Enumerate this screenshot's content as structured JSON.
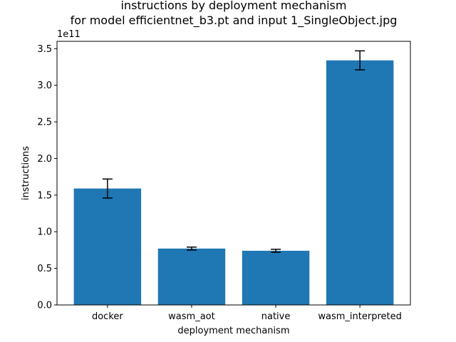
{
  "chart_data": {
    "type": "bar",
    "title": "instructions by deployment mechanism",
    "subtitle": "for model efficientnet_b3.pt and input 1_SingleObject.jpg",
    "xlabel": "deployment mechanism",
    "ylabel": "instructions",
    "y_multiplier_label": "1e11",
    "categories": [
      "docker",
      "wasm_aot",
      "native",
      "wasm_interpreted"
    ],
    "values": [
      1.59,
      0.77,
      0.74,
      3.34
    ],
    "errors": [
      0.13,
      0.02,
      0.02,
      0.13
    ],
    "ylim": [
      0,
      3.6
    ],
    "yticks": [
      0.0,
      0.5,
      1.0,
      1.5,
      2.0,
      2.5,
      3.0,
      3.5
    ],
    "ytick_labels": [
      "0.0",
      "0.5",
      "1.0",
      "1.5",
      "2.0",
      "2.5",
      "3.0",
      "3.5"
    ],
    "bar_color": "#1f77b4",
    "error_color": "#000000",
    "grid": false,
    "legend": "none"
  }
}
